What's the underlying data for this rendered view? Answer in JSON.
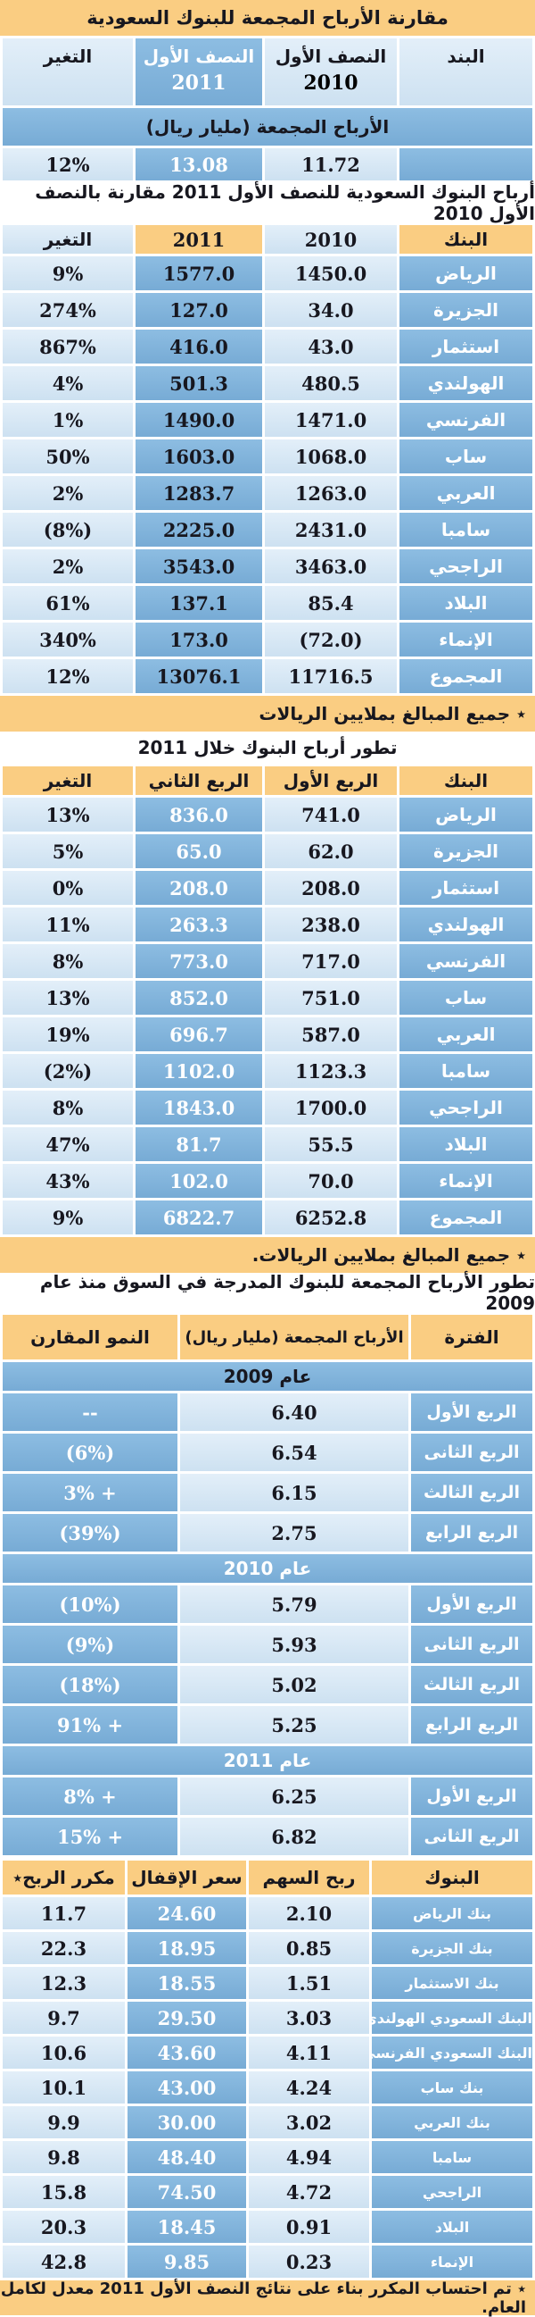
{
  "colors": {
    "header_orange": "#FACD82",
    "cell_light_blue": "#D7E7F5",
    "cell_mid_blue": "#82B4DC",
    "text_dark": "#17171F",
    "text_white": "#FFFFFF"
  },
  "summary_table": {
    "title": "مقارنة الأرباح المجمعة للبنوك السعودية",
    "col_item": "البند",
    "col_change": "التغير",
    "col_half_label": "النصف الأول",
    "year_2011": "2011",
    "year_2010": "2010",
    "band": "الأرباح المجمعة (مليار ريال)",
    "row": {
      "item": "",
      "v2010": "11.72",
      "v2011": "13.08",
      "change": "12%"
    }
  },
  "half_year_table": {
    "title": "أرباح البنوك السعودية للنصف الأول 2011 مقارنة بالنصف الأول 2010",
    "headers": {
      "bank": "البنك",
      "y2010": "2010",
      "y2011": "2011",
      "change": "التغير"
    },
    "rows": [
      {
        "bank": "الرياض",
        "v2010": "1450.0",
        "v2011": "1577.0",
        "change": "9%"
      },
      {
        "bank": "الجزيرة",
        "v2010": "34.0",
        "v2011": "127.0",
        "change": "274%"
      },
      {
        "bank": "استثمار",
        "v2010": "43.0",
        "v2011": "416.0",
        "change": "867%"
      },
      {
        "bank": "الهولندي",
        "v2010": "480.5",
        "v2011": "501.3",
        "change": "4%"
      },
      {
        "bank": "الفرنسي",
        "v2010": "1471.0",
        "v2011": "1490.0",
        "change": "1%"
      },
      {
        "bank": "ساب",
        "v2010": "1068.0",
        "v2011": "1603.0",
        "change": "50%"
      },
      {
        "bank": "العربي",
        "v2010": "1263.0",
        "v2011": "1283.7",
        "change": "2%"
      },
      {
        "bank": "سامبا",
        "v2010": "2431.0",
        "v2011": "2225.0",
        "change": "(8%)"
      },
      {
        "bank": "الراجحي",
        "v2010": "3463.0",
        "v2011": "3543.0",
        "change": "2%"
      },
      {
        "bank": "البلاد",
        "v2010": "85.4",
        "v2011": "137.1",
        "change": "61%"
      },
      {
        "bank": "الإنماء",
        "v2010": "(72.0)",
        "v2011": "173.0",
        "change": "340%"
      },
      {
        "bank": "المجموع",
        "v2010": "11716.5",
        "v2011": "13076.1",
        "change": "12%"
      }
    ],
    "note": "٭ جميع المبالغ بملايين الريالات"
  },
  "quarterly_table": {
    "title": "تطور أرباح البنوك خلال 2011",
    "headers": {
      "bank": "البنك",
      "q1": "الربع الأول",
      "q2": "الربع الثاني",
      "change": "التغير"
    },
    "rows": [
      {
        "bank": "الرياض",
        "q1": "741.0",
        "q2": "836.0",
        "change": "13%"
      },
      {
        "bank": "الجزيرة",
        "q1": "62.0",
        "q2": "65.0",
        "change": "5%"
      },
      {
        "bank": "استثمار",
        "q1": "208.0",
        "q2": "208.0",
        "change": "0%"
      },
      {
        "bank": "الهولندي",
        "q1": "238.0",
        "q2": "263.3",
        "change": "11%"
      },
      {
        "bank": "الفرنسي",
        "q1": "717.0",
        "q2": "773.0",
        "change": "8%"
      },
      {
        "bank": "ساب",
        "q1": "751.0",
        "q2": "852.0",
        "change": "13%"
      },
      {
        "bank": "العربي",
        "q1": "587.0",
        "q2": "696.7",
        "change": "19%"
      },
      {
        "bank": "سامبا",
        "q1": "1123.3",
        "q2": "1102.0",
        "change": "(2%)"
      },
      {
        "bank": "الراجحي",
        "q1": "1700.0",
        "q2": "1843.0",
        "change": "8%"
      },
      {
        "bank": "البلاد",
        "q1": "55.5",
        "q2": "81.7",
        "change": "47%"
      },
      {
        "bank": "الإنماء",
        "q1": "70.0",
        "q2": "102.0",
        "change": "43%"
      },
      {
        "bank": "المجموع",
        "q1": "6252.8",
        "q2": "6822.7",
        "change": "9%"
      }
    ],
    "note": "٭ جميع المبالغ بملايين الريالات."
  },
  "aggregate_table": {
    "title": "تطور الأرباح المجمعة للبنوك المدرجة في السوق منذ عام 2009",
    "headers": {
      "period": "الفترة",
      "profit": "الأرباح المجمعة (مليار ريال)",
      "growth": "النمو المقارن"
    },
    "sections": [
      {
        "year": "عام 2009",
        "rows": [
          {
            "period": "الربع الأول",
            "profit": "6.40",
            "growth": "--"
          },
          {
            "period": "الربع الثانى",
            "profit": "6.54",
            "growth": "(6%)"
          },
          {
            "period": "الربع الثالث",
            "profit": "6.15",
            "growth": "3% +"
          },
          {
            "period": "الربع الرابع",
            "profit": "2.75",
            "growth": "(39%)"
          }
        ]
      },
      {
        "year": "عام 2010",
        "rows": [
          {
            "period": "الربع الأول",
            "profit": "5.79",
            "growth": "(10%)"
          },
          {
            "period": "الربع الثانى",
            "profit": "5.93",
            "growth": "(9%)"
          },
          {
            "period": "الربع الثالث",
            "profit": "5.02",
            "growth": "(18%)"
          },
          {
            "period": "الربع الرابع",
            "profit": "5.25",
            "growth": "91% +"
          }
        ]
      },
      {
        "year": "عام 2011",
        "rows": [
          {
            "period": "الربع الأول",
            "profit": "6.25",
            "growth": "8% +"
          },
          {
            "period": "الربع الثانى",
            "profit": "6.82",
            "growth": "15% +"
          }
        ]
      }
    ]
  },
  "valuation_table": {
    "headers": {
      "bank": "البنوك",
      "eps": "ربح السهم",
      "close": "سعر الإقفال",
      "pe": "مكرر الربح٭"
    },
    "rows": [
      {
        "bank": "بنك الرياض",
        "eps": "2.10",
        "close": "24.60",
        "pe": "11.7"
      },
      {
        "bank": "بنك الجزيرة",
        "eps": "0.85",
        "close": "18.95",
        "pe": "22.3"
      },
      {
        "bank": "بنك الاستثمار",
        "eps": "1.51",
        "close": "18.55",
        "pe": "12.3"
      },
      {
        "bank": "البنك السعودي الهولندي",
        "eps": "3.03",
        "close": "29.50",
        "pe": "9.7"
      },
      {
        "bank": "البنك السعودي الفرنسي",
        "eps": "4.11",
        "close": "43.60",
        "pe": "10.6"
      },
      {
        "bank": "بنك ساب",
        "eps": "4.24",
        "close": "43.00",
        "pe": "10.1"
      },
      {
        "bank": "بنك العربي",
        "eps": "3.02",
        "close": "30.00",
        "pe": "9.9"
      },
      {
        "bank": "سامبا",
        "eps": "4.94",
        "close": "48.40",
        "pe": "9.8"
      },
      {
        "bank": "الراجحي",
        "eps": "4.72",
        "close": "74.50",
        "pe": "15.8"
      },
      {
        "bank": "البلاد",
        "eps": "0.91",
        "close": "18.45",
        "pe": "20.3"
      },
      {
        "bank": "الإنماء",
        "eps": "0.23",
        "close": "9.85",
        "pe": "42.8"
      }
    ],
    "footnote": "٭ تم احتساب المكرر بناء على نتائج النصف الأول 2011 معدل لكامل العام."
  }
}
